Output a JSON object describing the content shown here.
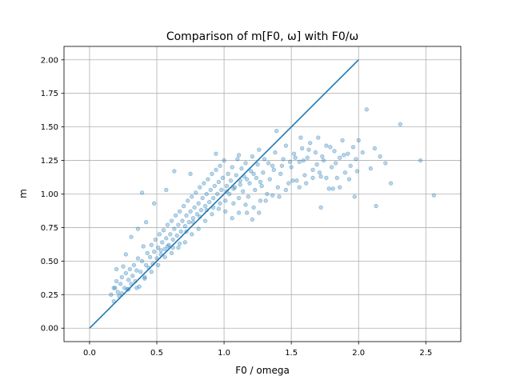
{
  "chart_data": {
    "type": "scatter",
    "title": "Comparison of m[F0, ω] with F0/ω",
    "xlabel": "F0 / omega",
    "ylabel": "m",
    "xlim": [
      -0.19,
      2.76
    ],
    "ylim": [
      -0.1,
      2.1
    ],
    "x_ticks": [
      0.0,
      0.5,
      1.0,
      1.5,
      2.0,
      2.5
    ],
    "x_tick_labels": [
      "0.0",
      "0.5",
      "1.0",
      "1.5",
      "2.0",
      "2.5"
    ],
    "y_ticks": [
      0.0,
      0.25,
      0.5,
      0.75,
      1.0,
      1.25,
      1.5,
      1.75,
      2.0
    ],
    "y_tick_labels": [
      "0.00",
      "0.25",
      "0.50",
      "0.75",
      "1.00",
      "1.25",
      "1.50",
      "1.75",
      "2.00"
    ],
    "grid": true,
    "colors": {
      "series": "#1f77b4",
      "grid": "#b0b0b0",
      "axis": "#000000"
    },
    "series": [
      {
        "type": "line",
        "x": [
          0.0,
          2.0
        ],
        "y": [
          0.0,
          2.0
        ]
      },
      {
        "type": "scatter",
        "alpha": 0.3,
        "points": [
          [
            0.16,
            0.25
          ],
          [
            0.18,
            0.2
          ],
          [
            0.19,
            0.3
          ],
          [
            0.2,
            0.35
          ],
          [
            0.21,
            0.27
          ],
          [
            0.22,
            0.24
          ],
          [
            0.23,
            0.33
          ],
          [
            0.24,
            0.38
          ],
          [
            0.25,
            0.46
          ],
          [
            0.26,
            0.3
          ],
          [
            0.27,
            0.41
          ],
          [
            0.28,
            0.29
          ],
          [
            0.29,
            0.36
          ],
          [
            0.3,
            0.44
          ],
          [
            0.31,
            0.33
          ],
          [
            0.32,
            0.39
          ],
          [
            0.33,
            0.47
          ],
          [
            0.34,
            0.35
          ],
          [
            0.35,
            0.43
          ],
          [
            0.36,
            0.52
          ],
          [
            0.37,
            0.31
          ],
          [
            0.38,
            0.42
          ],
          [
            0.39,
            0.5
          ],
          [
            0.4,
            0.61
          ],
          [
            0.41,
            0.38
          ],
          [
            0.42,
            0.47
          ],
          [
            0.43,
            0.56
          ],
          [
            0.44,
            0.45
          ],
          [
            0.45,
            0.53
          ],
          [
            0.46,
            0.62
          ],
          [
            0.47,
            0.48
          ],
          [
            0.48,
            0.57
          ],
          [
            0.49,
            0.66
          ],
          [
            0.5,
            0.52
          ],
          [
            0.51,
            0.6
          ],
          [
            0.52,
            0.7
          ],
          [
            0.53,
            0.55
          ],
          [
            0.54,
            0.64
          ],
          [
            0.55,
            0.73
          ],
          [
            0.56,
            0.59
          ],
          [
            0.57,
            0.67
          ],
          [
            0.58,
            0.77
          ],
          [
            0.59,
            0.62
          ],
          [
            0.6,
            0.7
          ],
          [
            0.61,
            0.8
          ],
          [
            0.62,
            0.66
          ],
          [
            0.63,
            0.74
          ],
          [
            0.64,
            0.84
          ],
          [
            0.65,
            0.69
          ],
          [
            0.66,
            0.77
          ],
          [
            0.67,
            0.87
          ],
          [
            0.68,
            0.72
          ],
          [
            0.69,
            0.8
          ],
          [
            0.7,
            0.91
          ],
          [
            0.71,
            0.76
          ],
          [
            0.72,
            0.84
          ],
          [
            0.73,
            0.95
          ],
          [
            0.74,
            0.79
          ],
          [
            0.75,
            0.87
          ],
          [
            0.76,
            0.98
          ],
          [
            0.77,
            0.82
          ],
          [
            0.78,
            0.9
          ],
          [
            0.79,
            1.01
          ],
          [
            0.8,
            0.85
          ],
          [
            0.81,
            0.93
          ],
          [
            0.82,
            1.05
          ],
          [
            0.83,
            0.88
          ],
          [
            0.84,
            0.97
          ],
          [
            0.85,
            1.08
          ],
          [
            0.86,
            0.91
          ],
          [
            0.87,
            1.0
          ],
          [
            0.88,
            1.11
          ],
          [
            0.89,
            0.94
          ],
          [
            0.9,
            1.03
          ],
          [
            0.91,
            1.15
          ],
          [
            0.92,
            0.97
          ],
          [
            0.93,
            1.06
          ],
          [
            0.94,
            1.18
          ],
          [
            0.95,
            1.0
          ],
          [
            0.96,
            1.09
          ],
          [
            0.97,
            1.21
          ],
          [
            0.98,
            1.03
          ],
          [
            0.99,
            1.12
          ],
          [
            1.0,
            1.25
          ],
          [
            1.01,
            0.95
          ],
          [
            1.02,
            1.06
          ],
          [
            1.03,
            1.15
          ],
          [
            1.04,
            1.0
          ],
          [
            1.05,
            1.1
          ],
          [
            1.06,
            1.2
          ],
          [
            1.07,
            0.93
          ],
          [
            1.08,
            1.05
          ],
          [
            1.09,
            1.14
          ],
          [
            1.1,
            1.26
          ],
          [
            1.11,
            0.97
          ],
          [
            1.12,
            1.1
          ],
          [
            1.13,
            1.19
          ],
          [
            1.14,
            1.02
          ],
          [
            1.15,
            1.13
          ],
          [
            1.16,
            1.23
          ],
          [
            1.17,
            0.86
          ],
          [
            1.18,
            0.98
          ],
          [
            1.19,
            1.08
          ],
          [
            1.2,
            1.17
          ],
          [
            1.21,
            1.28
          ],
          [
            1.22,
            0.9
          ],
          [
            1.23,
            1.03
          ],
          [
            1.24,
            1.12
          ],
          [
            1.25,
            1.22
          ],
          [
            1.26,
            1.33
          ],
          [
            1.27,
            0.95
          ],
          [
            1.28,
            1.06
          ],
          [
            1.29,
            1.16
          ],
          [
            1.3,
            1.26
          ],
          [
            1.32,
            1.0
          ],
          [
            1.34,
            1.11
          ],
          [
            1.36,
            1.21
          ],
          [
            1.38,
            1.31
          ],
          [
            1.4,
            1.05
          ],
          [
            1.42,
            1.15
          ],
          [
            1.44,
            1.26
          ],
          [
            1.46,
            1.36
          ],
          [
            1.48,
            1.08
          ],
          [
            1.5,
            1.2
          ],
          [
            1.52,
            1.3
          ],
          [
            1.54,
            1.1
          ],
          [
            1.56,
            1.24
          ],
          [
            1.58,
            1.34
          ],
          [
            1.6,
            1.14
          ],
          [
            1.62,
            1.27
          ],
          [
            1.64,
            1.38
          ],
          [
            1.66,
            1.18
          ],
          [
            1.68,
            1.31
          ],
          [
            1.7,
            1.42
          ],
          [
            1.72,
            1.13
          ],
          [
            1.74,
            1.25
          ],
          [
            1.76,
            1.36
          ],
          [
            1.78,
            1.04
          ],
          [
            1.8,
            1.2
          ],
          [
            1.82,
            1.32
          ],
          [
            1.84,
            1.12
          ],
          [
            1.86,
            1.27
          ],
          [
            1.88,
            1.4
          ],
          [
            1.9,
            1.16
          ],
          [
            1.92,
            1.3
          ],
          [
            1.94,
            1.21
          ],
          [
            1.96,
            1.35
          ],
          [
            1.98,
            1.26
          ],
          [
            2.0,
            1.4
          ],
          [
            2.03,
            1.31
          ],
          [
            2.06,
            1.63
          ],
          [
            2.09,
            1.19
          ],
          [
            2.12,
            1.34
          ],
          [
            2.16,
            1.28
          ],
          [
            2.2,
            1.23
          ],
          [
            2.24,
            1.08
          ],
          [
            2.31,
            1.52
          ],
          [
            2.46,
            1.25
          ],
          [
            2.56,
            0.99
          ],
          [
            2.13,
            0.91
          ],
          [
            1.72,
            0.9
          ],
          [
            1.97,
            0.98
          ],
          [
            1.57,
            1.42
          ],
          [
            1.39,
            1.47
          ],
          [
            1.11,
            1.29
          ],
          [
            0.94,
            1.3
          ],
          [
            0.75,
            1.15
          ],
          [
            0.63,
            1.17
          ],
          [
            0.57,
            1.03
          ],
          [
            0.48,
            0.93
          ],
          [
            0.39,
            1.01
          ],
          [
            0.42,
            0.79
          ],
          [
            0.36,
            0.74
          ],
          [
            0.31,
            0.68
          ],
          [
            0.27,
            0.55
          ],
          [
            0.2,
            0.44
          ],
          [
            0.18,
            0.3
          ],
          [
            0.24,
            0.26
          ],
          [
            0.29,
            0.29
          ],
          [
            0.35,
            0.3
          ],
          [
            0.41,
            0.37
          ],
          [
            0.46,
            0.42
          ],
          [
            0.51,
            0.47
          ],
          [
            0.56,
            0.53
          ],
          [
            0.61,
            0.56
          ],
          [
            0.66,
            0.6
          ],
          [
            0.71,
            0.64
          ],
          [
            0.76,
            0.7
          ],
          [
            0.81,
            0.74
          ],
          [
            0.86,
            0.8
          ],
          [
            0.91,
            0.85
          ],
          [
            0.96,
            0.89
          ],
          [
            1.01,
            0.87
          ],
          [
            1.06,
            0.82
          ],
          [
            1.11,
            0.86
          ],
          [
            1.16,
            0.92
          ],
          [
            1.21,
            0.81
          ],
          [
            1.26,
            0.86
          ],
          [
            1.31,
            0.95
          ],
          [
            1.36,
            0.99
          ],
          [
            1.41,
            0.98
          ],
          [
            1.46,
            1.03
          ],
          [
            1.51,
            1.1
          ],
          [
            1.56,
            1.05
          ],
          [
            1.61,
            1.08
          ],
          [
            1.66,
            1.12
          ],
          [
            1.71,
            1.16
          ],
          [
            1.76,
            1.12
          ],
          [
            1.81,
            1.04
          ],
          [
            1.86,
            1.05
          ],
          [
            0.53,
            0.58
          ],
          [
            0.58,
            0.61
          ],
          [
            0.62,
            0.6
          ],
          [
            0.67,
            0.63
          ],
          [
            0.72,
            0.72
          ],
          [
            0.77,
            0.79
          ],
          [
            0.82,
            0.83
          ],
          [
            0.87,
            0.88
          ],
          [
            0.92,
            0.9
          ],
          [
            0.97,
            0.93
          ],
          [
            1.02,
            1.02
          ],
          [
            1.07,
            1.04
          ],
          [
            1.12,
            1.07
          ],
          [
            1.17,
            1.11
          ],
          [
            1.22,
            1.15
          ],
          [
            1.27,
            1.09
          ],
          [
            1.33,
            1.23
          ],
          [
            1.37,
            1.18
          ],
          [
            1.43,
            1.21
          ],
          [
            1.49,
            1.24
          ],
          [
            1.53,
            1.27
          ],
          [
            1.59,
            1.25
          ],
          [
            1.63,
            1.33
          ],
          [
            1.69,
            1.22
          ],
          [
            1.73,
            1.28
          ],
          [
            1.79,
            1.35
          ],
          [
            1.83,
            1.23
          ],
          [
            1.89,
            1.29
          ],
          [
            1.93,
            1.11
          ],
          [
            1.99,
            1.17
          ]
        ]
      }
    ]
  }
}
